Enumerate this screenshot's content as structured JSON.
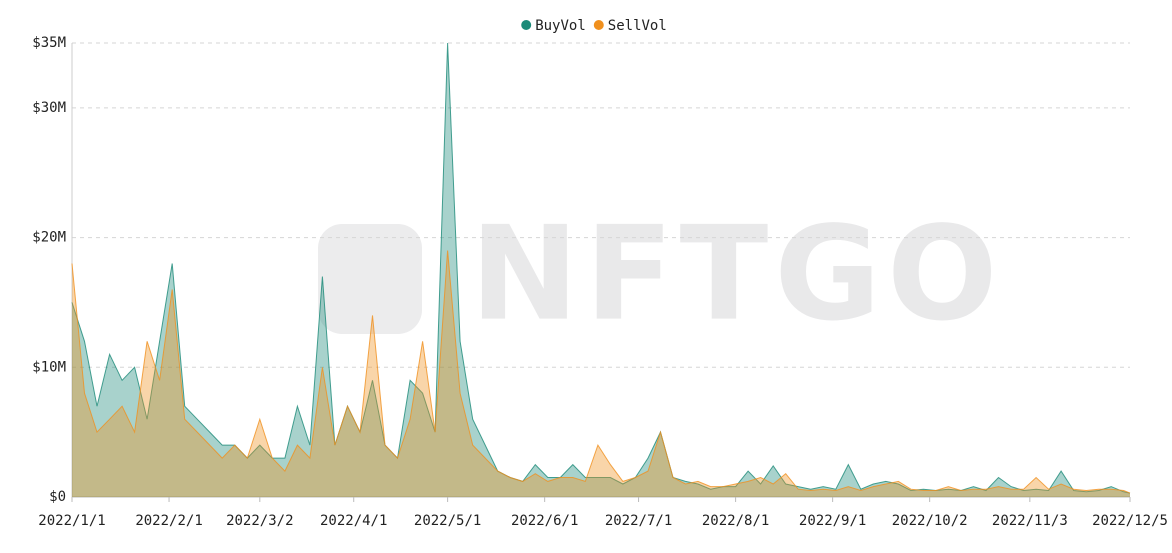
{
  "chart_data": {
    "type": "area",
    "watermark": "NFTGO",
    "x": [
      "2022/1/1",
      "2022/1/5",
      "2022/1/9",
      "2022/1/13",
      "2022/1/17",
      "2022/1/21",
      "2022/1/25",
      "2022/1/29",
      "2022/2/2",
      "2022/2/6",
      "2022/2/10",
      "2022/2/14",
      "2022/2/18",
      "2022/2/22",
      "2022/2/26",
      "2022/3/2",
      "2022/3/6",
      "2022/3/10",
      "2022/3/14",
      "2022/3/18",
      "2022/3/22",
      "2022/3/26",
      "2022/3/30",
      "2022/4/3",
      "2022/4/7",
      "2022/4/11",
      "2022/4/15",
      "2022/4/19",
      "2022/4/23",
      "2022/4/27",
      "2022/5/1",
      "2022/5/5",
      "2022/5/9",
      "2022/5/13",
      "2022/5/17",
      "2022/5/21",
      "2022/5/25",
      "2022/5/29",
      "2022/6/2",
      "2022/6/6",
      "2022/6/10",
      "2022/6/14",
      "2022/6/18",
      "2022/6/22",
      "2022/6/26",
      "2022/6/30",
      "2022/7/4",
      "2022/7/8",
      "2022/7/12",
      "2022/7/16",
      "2022/7/20",
      "2022/7/24",
      "2022/7/28",
      "2022/8/1",
      "2022/8/5",
      "2022/8/9",
      "2022/8/13",
      "2022/8/17",
      "2022/8/21",
      "2022/8/25",
      "2022/8/29",
      "2022/9/2",
      "2022/9/6",
      "2022/9/10",
      "2022/9/14",
      "2022/9/18",
      "2022/9/22",
      "2022/9/26",
      "2022/9/30",
      "2022/10/4",
      "2022/10/8",
      "2022/10/12",
      "2022/10/16",
      "2022/10/20",
      "2022/10/24",
      "2022/10/28",
      "2022/11/1",
      "2022/11/5",
      "2022/11/9",
      "2022/11/13",
      "2022/11/17",
      "2022/11/21",
      "2022/11/25",
      "2022/11/29",
      "2022/12/3",
      "2022/12/5"
    ],
    "series": [
      {
        "name": "BuyVol",
        "color": "#1b8a78",
        "values": [
          15000000,
          12000000,
          7000000,
          11000000,
          9000000,
          10000000,
          6000000,
          12000000,
          18000000,
          7000000,
          6000000,
          5000000,
          4000000,
          4000000,
          3000000,
          4000000,
          3000000,
          3000000,
          7000000,
          4000000,
          17000000,
          4000000,
          7000000,
          5000000,
          9000000,
          4000000,
          3000000,
          9000000,
          8000000,
          5000000,
          35000000,
          12000000,
          6000000,
          4000000,
          2000000,
          1500000,
          1200000,
          2500000,
          1500000,
          1500000,
          2500000,
          1500000,
          1500000,
          1500000,
          1000000,
          1500000,
          3000000,
          5000000,
          1500000,
          1200000,
          1000000,
          600000,
          800000,
          800000,
          2000000,
          1000000,
          2400000,
          1000000,
          800000,
          600000,
          800000,
          600000,
          2500000,
          600000,
          1000000,
          1200000,
          1000000,
          500000,
          600000,
          500000,
          600000,
          500000,
          800000,
          500000,
          1500000,
          800000,
          500000,
          600000,
          500000,
          2000000,
          500000,
          400000,
          500000,
          800000,
          400000,
          300000
        ]
      },
      {
        "name": "SellVol",
        "color": "#f0901e",
        "values": [
          18000000,
          8000000,
          5000000,
          6000000,
          7000000,
          5000000,
          12000000,
          9000000,
          16000000,
          6000000,
          5000000,
          4000000,
          3000000,
          4000000,
          3000000,
          6000000,
          3000000,
          2000000,
          4000000,
          3000000,
          10000000,
          4000000,
          7000000,
          5000000,
          14000000,
          4000000,
          3000000,
          6000000,
          12000000,
          5000000,
          19000000,
          8000000,
          4000000,
          3000000,
          2000000,
          1500000,
          1200000,
          1800000,
          1200000,
          1500000,
          1500000,
          1200000,
          4000000,
          2500000,
          1200000,
          1500000,
          2000000,
          5000000,
          1500000,
          1000000,
          1200000,
          800000,
          800000,
          1000000,
          1200000,
          1500000,
          1000000,
          1800000,
          600000,
          500000,
          600000,
          500000,
          800000,
          500000,
          800000,
          1000000,
          1200000,
          600000,
          500000,
          500000,
          800000,
          500000,
          600000,
          600000,
          800000,
          600000,
          600000,
          1500000,
          600000,
          1000000,
          600000,
          500000,
          600000,
          600000,
          500000,
          300000
        ]
      }
    ],
    "xlim": [
      "2022/1/1",
      "2022/12/5"
    ],
    "xticks": [
      "2022/1/1",
      "2022/2/1",
      "2022/3/2",
      "2022/4/1",
      "2022/5/1",
      "2022/6/1",
      "2022/7/1",
      "2022/8/1",
      "2022/9/1",
      "2022/10/2",
      "2022/11/3",
      "2022/12/5"
    ],
    "ylim": [
      0,
      35000000
    ],
    "yticks": [
      {
        "value": 0,
        "label": "$0"
      },
      {
        "value": 10000000,
        "label": "$10M"
      },
      {
        "value": 20000000,
        "label": "$20M"
      },
      {
        "value": 30000000,
        "label": "$30M"
      },
      {
        "value": 35000000,
        "label": "$35M"
      }
    ],
    "grid": true,
    "legend": "top"
  }
}
